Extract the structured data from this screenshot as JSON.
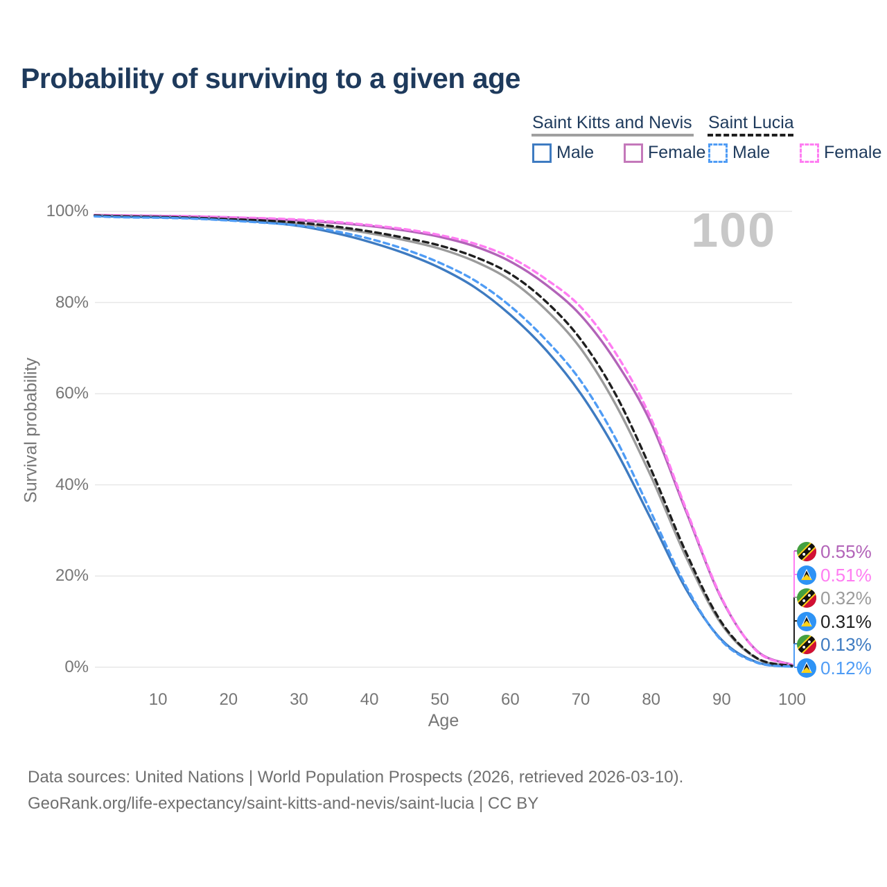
{
  "title": "Probability of surviving to a given age",
  "watermark_age": "100",
  "legend": {
    "groups": [
      {
        "country": "Saint Kitts and Nevis",
        "line_style": "solid",
        "underline_color": "#a0a0a0",
        "items": [
          {
            "label": "Male",
            "color": "#3e7bc1",
            "dashed": false
          },
          {
            "label": "Female",
            "color": "#c478ba",
            "dashed": false
          }
        ]
      },
      {
        "country": "Saint Lucia",
        "line_style": "dashed",
        "underline_color": "#1f1f1f",
        "items": [
          {
            "label": "Male",
            "color": "#4f9cf5",
            "dashed": true
          },
          {
            "label": "Female",
            "color": "#ff7df2",
            "dashed": true
          }
        ]
      }
    ]
  },
  "chart_data": {
    "type": "line",
    "title": "Probability of surviving to a given age",
    "xlabel": "Age",
    "ylabel": "Survival probability",
    "xlim": [
      0,
      100
    ],
    "ylim": [
      0,
      100
    ],
    "grid": "horizontal",
    "x_tick_values": [
      10,
      20,
      30,
      40,
      50,
      60,
      70,
      80,
      90,
      100
    ],
    "x_tick_labels": [
      "10",
      "20",
      "30",
      "40",
      "50",
      "60",
      "70",
      "80",
      "90",
      "100"
    ],
    "y_tick_values": [
      0,
      20,
      40,
      60,
      80,
      100
    ],
    "y_tick_labels": [
      "0%",
      "20%",
      "40%",
      "60%",
      "80%",
      "100%"
    ],
    "ages": [
      1,
      5,
      10,
      15,
      20,
      25,
      30,
      35,
      40,
      45,
      50,
      55,
      60,
      65,
      70,
      75,
      80,
      85,
      90,
      95,
      100
    ],
    "series": [
      {
        "name": "Saint Kitts and Nevis — Female",
        "country": "Saint Kitts and Nevis",
        "sex": "Female",
        "color": "#b263b8",
        "dashed": false,
        "end_label": "0.55%",
        "values": [
          99.2,
          99.1,
          99.0,
          98.9,
          98.7,
          98.4,
          98.0,
          97.5,
          96.8,
          95.8,
          94.4,
          92.3,
          89.0,
          84.0,
          77.2,
          67.0,
          53.5,
          34.0,
          15.0,
          3.6,
          0.55
        ]
      },
      {
        "name": "Saint Lucia — Female",
        "country": "Saint Lucia",
        "sex": "Female",
        "color": "#ff7df2",
        "dashed": true,
        "end_label": "0.51%",
        "values": [
          99.2,
          99.1,
          99.0,
          98.9,
          98.7,
          98.5,
          98.2,
          97.7,
          97.0,
          96.1,
          94.8,
          92.9,
          89.9,
          85.2,
          79.0,
          68.8,
          54.5,
          34.5,
          15.2,
          3.5,
          0.51
        ]
      },
      {
        "name": "Saint Kitts and Nevis — Both sexes",
        "country": "Saint Kitts and Nevis",
        "sex": "Total",
        "color": "#9b9b9b",
        "dashed": false,
        "end_label": "0.32%",
        "values": [
          99.1,
          99.0,
          98.8,
          98.6,
          98.3,
          97.9,
          97.3,
          96.4,
          95.2,
          93.7,
          91.8,
          89.0,
          84.9,
          78.5,
          69.9,
          57.5,
          41.8,
          24.0,
          9.4,
          1.9,
          0.32
        ]
      },
      {
        "name": "Saint Lucia — Both sexes",
        "country": "Saint Lucia",
        "sex": "Total",
        "color": "#1f1f1f",
        "dashed": true,
        "end_label": "0.31%",
        "values": [
          99.1,
          98.9,
          98.8,
          98.6,
          98.3,
          98.0,
          97.5,
          96.7,
          95.6,
          94.2,
          92.5,
          90.0,
          86.3,
          80.3,
          71.9,
          59.7,
          43.3,
          25.0,
          9.8,
          2.0,
          0.31
        ]
      },
      {
        "name": "Saint Kitts and Nevis — Male",
        "country": "Saint Kitts and Nevis",
        "sex": "Male",
        "color": "#3e7bc1",
        "dashed": false,
        "end_label": "0.13%",
        "values": [
          99.0,
          98.8,
          98.7,
          98.5,
          98.1,
          97.6,
          96.8,
          95.3,
          93.3,
          90.8,
          87.6,
          83.3,
          77.3,
          69.7,
          60.0,
          47.5,
          32.4,
          17.0,
          6.0,
          1.1,
          0.13
        ]
      },
      {
        "name": "Saint Lucia — Male",
        "country": "Saint Lucia",
        "sex": "Male",
        "color": "#4f9cf5",
        "dashed": true,
        "end_label": "0.12%",
        "values": [
          98.9,
          98.7,
          98.6,
          98.4,
          98.0,
          97.5,
          96.9,
          95.7,
          94.0,
          91.7,
          88.7,
          84.8,
          79.2,
          71.9,
          62.8,
          50.0,
          33.9,
          17.6,
          5.8,
          1.0,
          0.12
        ]
      }
    ]
  },
  "end_labels": [
    {
      "flag": "saint-kitts-and-nevis",
      "value": "0.55%",
      "color": "#b263b8"
    },
    {
      "flag": "saint-lucia",
      "value": "0.51%",
      "color": "#ff7df2"
    },
    {
      "flag": "saint-kitts-and-nevis",
      "value": "0.32%",
      "color": "#9b9b9b"
    },
    {
      "flag": "saint-lucia",
      "value": "0.31%",
      "color": "#1f1f1f"
    },
    {
      "flag": "saint-kitts-and-nevis",
      "value": "0.13%",
      "color": "#3e7bc1"
    },
    {
      "flag": "saint-lucia",
      "value": "0.12%",
      "color": "#4f9cf5"
    }
  ],
  "footer": {
    "line1": "Data sources: United Nations | World Population Prospects (2026, retrieved 2026-03-10).",
    "line2": "GeoRank.org/life-expectancy/saint-kitts-and-nevis/saint-lucia | CC BY"
  }
}
